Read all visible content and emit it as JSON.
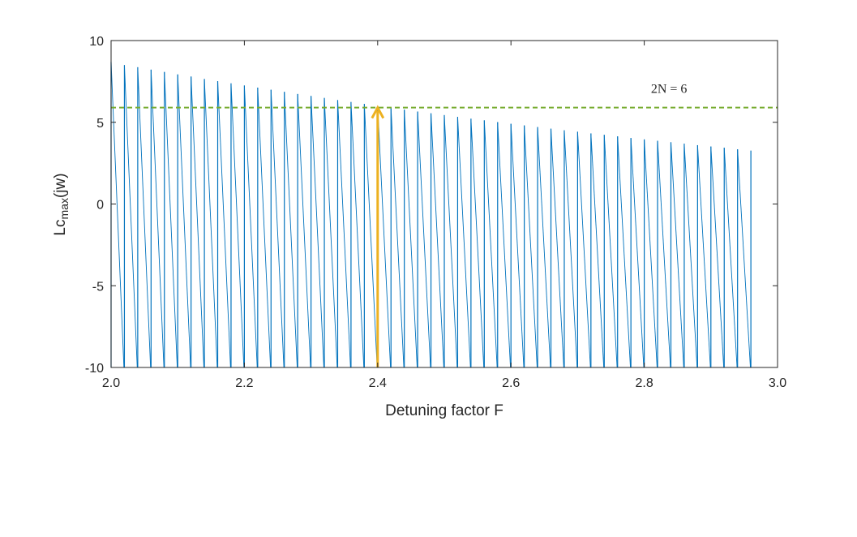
{
  "chart_data": {
    "type": "line",
    "xlabel": "Detuning factor F",
    "ylabel_main": "Lc",
    "ylabel_sub": "max",
    "ylabel_tail": "(jw)",
    "xlim": [
      2.0,
      3.0
    ],
    "ylim": [
      -10,
      10
    ],
    "xticks": [
      2.0,
      2.2,
      2.4,
      2.6,
      2.8,
      3.0
    ],
    "xtick_labels": [
      "2.0",
      "2.2",
      "2.4",
      "2.6",
      "2.8",
      "3.0"
    ],
    "yticks": [
      10,
      5,
      0,
      -5,
      -10
    ],
    "ytick_labels": [
      "10",
      "5",
      "0",
      "-5",
      "-10"
    ],
    "grid": false,
    "series": [
      {
        "color": "#0072BD",
        "spike_x": [
          2.0,
          2.02,
          2.04,
          2.06,
          2.08,
          2.1,
          2.12,
          2.14,
          2.16,
          2.18,
          2.2,
          2.22,
          2.24,
          2.26,
          2.28,
          2.3,
          2.32,
          2.34,
          2.36,
          2.38,
          2.4,
          2.42,
          2.44,
          2.46,
          2.48,
          2.5,
          2.52,
          2.54,
          2.56,
          2.58,
          2.6,
          2.62,
          2.64,
          2.66,
          2.68,
          2.7,
          2.72,
          2.74,
          2.76,
          2.78,
          2.8,
          2.82,
          2.84,
          2.86,
          2.88,
          2.9,
          2.92,
          2.94,
          2.96
        ],
        "spike_y": [
          8.7,
          8.5,
          8.37,
          8.22,
          8.08,
          7.93,
          7.8,
          7.65,
          7.52,
          7.38,
          7.25,
          7.12,
          6.99,
          6.86,
          6.73,
          6.61,
          6.49,
          6.36,
          6.24,
          6.12,
          6.0,
          5.89,
          5.77,
          5.66,
          5.55,
          5.44,
          5.33,
          5.22,
          5.12,
          5.01,
          4.91,
          4.81,
          4.71,
          4.61,
          4.51,
          4.42,
          4.32,
          4.23,
          4.14,
          4.04,
          3.95,
          3.87,
          3.78,
          3.69,
          3.6,
          3.52,
          3.44,
          3.35,
          3.27
        ],
        "trough_y": -10
      },
      {
        "color": "#77AC30",
        "style": "dashed",
        "y": 5.9,
        "x": [
          2.0,
          3.0
        ]
      }
    ],
    "annotation": {
      "text": "2N = 6",
      "x": 2.81,
      "y": 6.8
    },
    "arrow": {
      "color": "#EDB120",
      "x": 2.4,
      "y_from": -10,
      "y_to": 5.9
    }
  }
}
